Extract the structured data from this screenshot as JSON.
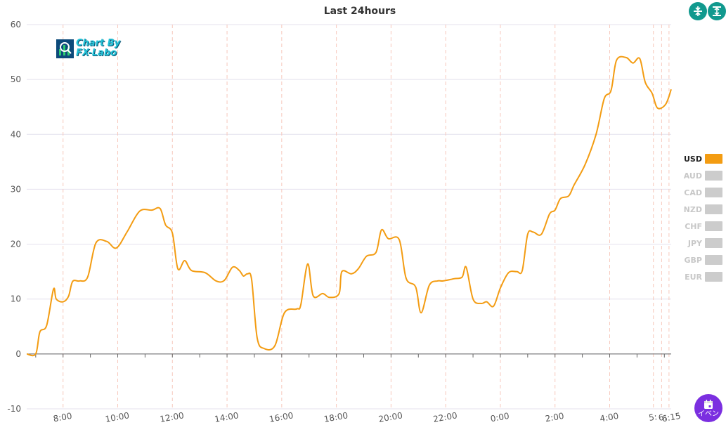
{
  "chart_data": {
    "type": "line",
    "title": "Last 24hours",
    "ylim": [
      -10,
      60
    ],
    "yticks": [
      -10,
      0,
      10,
      20,
      30,
      40,
      50,
      60
    ],
    "x_tick_labels": [
      "8:00",
      "10:00",
      "12:00",
      "14:00",
      "16:00",
      "18:00",
      "20:00",
      "22:00",
      "0:00",
      "2:00",
      "4:00",
      "5:",
      "6:",
      "6:15"
    ],
    "grid": true,
    "legend_position": "right",
    "series": [
      {
        "name": "USD",
        "color": "#f39c12",
        "active": true,
        "points": [
          [
            6.67,
            0
          ],
          [
            7.0,
            0
          ],
          [
            7.15,
            4
          ],
          [
            7.4,
            5.2
          ],
          [
            7.65,
            11.8
          ],
          [
            7.75,
            10
          ],
          [
            8.0,
            9.5
          ],
          [
            8.2,
            10.5
          ],
          [
            8.35,
            13.2
          ],
          [
            8.6,
            13.3
          ],
          [
            8.9,
            14
          ],
          [
            9.2,
            20.2
          ],
          [
            9.6,
            20.5
          ],
          [
            9.95,
            19.3
          ],
          [
            10.35,
            22.3
          ],
          [
            10.8,
            26
          ],
          [
            11.25,
            26.2
          ],
          [
            11.55,
            26.5
          ],
          [
            11.75,
            23.5
          ],
          [
            12.0,
            22
          ],
          [
            12.2,
            15.5
          ],
          [
            12.45,
            17
          ],
          [
            12.7,
            15.2
          ],
          [
            13.2,
            14.8
          ],
          [
            13.6,
            13.3
          ],
          [
            13.9,
            13.4
          ],
          [
            14.2,
            15.8
          ],
          [
            14.45,
            15.2
          ],
          [
            14.6,
            14.2
          ],
          [
            14.75,
            14.6
          ],
          [
            14.9,
            13.5
          ],
          [
            15.1,
            3
          ],
          [
            15.35,
            1
          ],
          [
            15.75,
            1.5
          ],
          [
            16.1,
            7.5
          ],
          [
            16.55,
            8.2
          ],
          [
            16.7,
            9
          ],
          [
            16.95,
            16.4
          ],
          [
            17.15,
            10.6
          ],
          [
            17.5,
            11
          ],
          [
            17.75,
            10.3
          ],
          [
            18.1,
            11
          ],
          [
            18.2,
            15
          ],
          [
            18.55,
            14.6
          ],
          [
            18.8,
            15.5
          ],
          [
            19.1,
            17.8
          ],
          [
            19.45,
            18.5
          ],
          [
            19.65,
            22.6
          ],
          [
            19.9,
            21
          ],
          [
            20.3,
            20.8
          ],
          [
            20.55,
            13.8
          ],
          [
            20.9,
            12.2
          ],
          [
            21.1,
            7.5
          ],
          [
            21.4,
            12.5
          ],
          [
            21.7,
            13.3
          ],
          [
            21.9,
            13.3
          ],
          [
            22.3,
            13.7
          ],
          [
            22.6,
            14
          ],
          [
            22.75,
            15.8
          ],
          [
            23.0,
            10
          ],
          [
            23.3,
            9.2
          ],
          [
            23.5,
            9.5
          ],
          [
            23.75,
            8.7
          ],
          [
            24.0,
            12
          ],
          [
            24.3,
            14.8
          ],
          [
            24.6,
            15
          ],
          [
            24.8,
            15.2
          ],
          [
            25.0,
            21.8
          ],
          [
            25.2,
            22.2
          ],
          [
            25.5,
            21.8
          ],
          [
            25.8,
            25.5
          ],
          [
            26.0,
            26.2
          ],
          [
            26.2,
            28.3
          ],
          [
            26.5,
            28.8
          ],
          [
            26.7,
            30.8
          ],
          [
            27.1,
            34.5
          ],
          [
            27.5,
            40
          ],
          [
            27.8,
            46.5
          ],
          [
            28.05,
            48
          ],
          [
            28.25,
            53.5
          ],
          [
            28.6,
            54
          ],
          [
            28.85,
            53
          ],
          [
            29.1,
            53.8
          ],
          [
            29.3,
            49.5
          ],
          [
            29.55,
            47.5
          ],
          [
            29.75,
            44.8
          ],
          [
            30.05,
            45.5
          ],
          [
            30.25,
            48.2
          ]
        ]
      },
      {
        "name": "AUD",
        "color": "#cccccc",
        "active": false
      },
      {
        "name": "CAD",
        "color": "#cccccc",
        "active": false
      },
      {
        "name": "NZD",
        "color": "#cccccc",
        "active": false
      },
      {
        "name": "CHF",
        "color": "#cccccc",
        "active": false
      },
      {
        "name": "JPY",
        "color": "#cccccc",
        "active": false
      },
      {
        "name": "GBP",
        "color": "#cccccc",
        "active": false
      },
      {
        "name": "EUR",
        "color": "#cccccc",
        "active": false
      }
    ]
  },
  "logo": {
    "line1": "Chart By",
    "line2": "FX-Labo"
  },
  "buttons": {
    "compress_icon": "compress-vertical-icon",
    "expand_icon": "expand-vertical-icon",
    "event_icon": "calendar-icon",
    "event_label": "イベン"
  },
  "colors": {
    "accent": "#11998e",
    "event": "#7b2fe0",
    "line": "#f39c12"
  }
}
